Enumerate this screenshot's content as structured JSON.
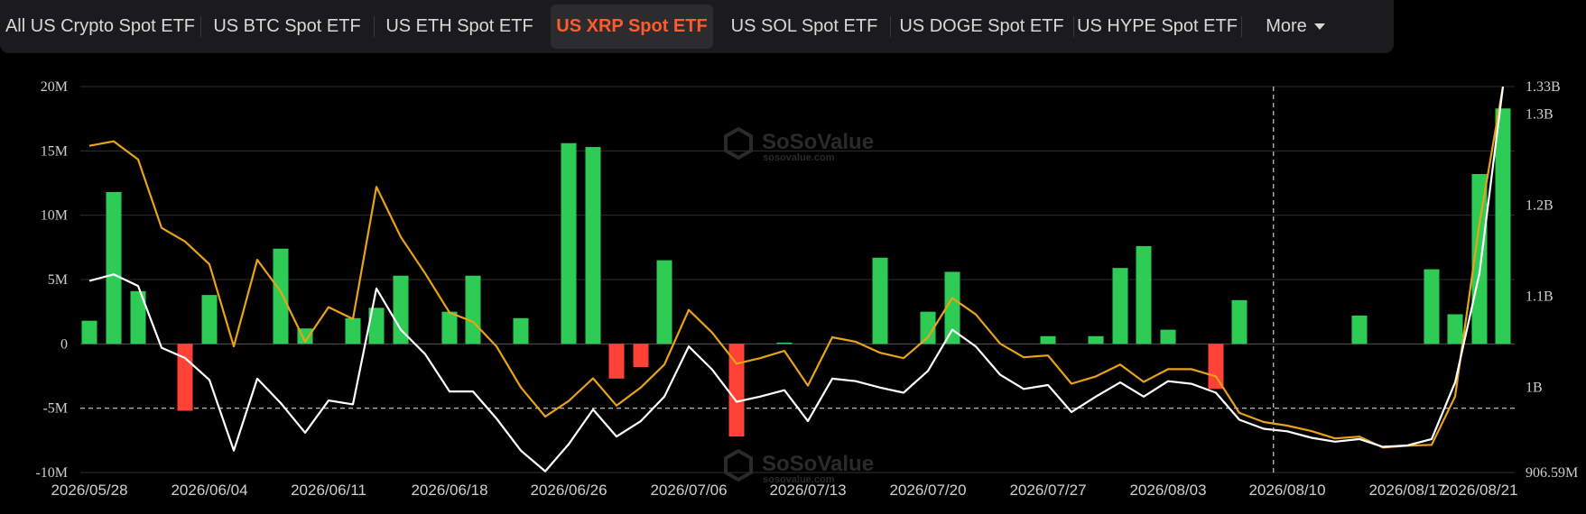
{
  "tabs": [
    {
      "label": "All US Crypto Spot ETF",
      "active": false
    },
    {
      "label": "US BTC Spot ETF",
      "active": false
    },
    {
      "label": "US ETH Spot ETF",
      "active": false
    },
    {
      "label": "US XRP Spot ETF",
      "active": true
    },
    {
      "label": "US SOL Spot ETF",
      "active": false
    },
    {
      "label": "US DOGE Spot ETF",
      "active": false
    },
    {
      "label": "US HYPE Spot ETF",
      "active": false
    }
  ],
  "more_label": "More",
  "watermark": {
    "brand": "SoSoValue",
    "domain": "sosovalue.com"
  },
  "colors": {
    "inflow": "#2ecc55",
    "outflow": "#ff4136",
    "line_white": "#ffffff",
    "line_orange": "#e8a318",
    "active_tab": "#ff5b2e"
  },
  "chart_data": {
    "type": "bar",
    "title": "",
    "xlabel": "",
    "ylabel": "",
    "left_ticks": [
      "20M",
      "15M",
      "10M",
      "5M",
      "0",
      "-5M",
      "-10M"
    ],
    "right_ticks": [
      "1.33B",
      "1.3B",
      "1.2B",
      "1.1B",
      "1B",
      "906.59M"
    ],
    "x_tick_labels": [
      "2026/05/28",
      "2026/06/04",
      "2026/06/11",
      "2026/06/18",
      "2026/06/26",
      "2026/07/06",
      "2026/07/13",
      "2026/07/20",
      "2026/07/27",
      "2026/08/03",
      "2026/08/10",
      "2026/08/17",
      "2026/08/21"
    ],
    "x_tick_index": [
      0,
      5,
      10,
      15,
      20,
      25,
      30,
      35,
      40,
      45,
      50,
      55,
      59
    ],
    "ylim_left": [
      -10000000,
      20000000
    ],
    "ylim_right": [
      906590000,
      1330000000
    ],
    "grid": true,
    "reference_lines": [
      {
        "axis": "left",
        "value": -5000000,
        "style": "dashed"
      }
    ],
    "marker_index": 49.5,
    "series": [
      {
        "kind": "bar",
        "axis": "left",
        "values": [
          1800000.0,
          11800000.0,
          4100000.0,
          0,
          -5200000.0,
          0,
          3800000.0,
          0,
          0,
          7400000.0,
          1200000.0,
          0,
          0,
          2000000.0,
          2800000.0,
          5300000.0,
          0,
          0,
          2500000.0,
          5300000.0,
          0,
          0,
          2000000.0,
          0,
          15600000.0,
          15300000.0,
          -2700000.0,
          -1800000.0,
          0,
          6500000.0,
          0,
          0,
          -7200000.0,
          0,
          100000.0,
          0,
          0,
          0,
          0,
          0,
          0,
          0,
          0,
          0,
          0,
          0,
          6700000.0,
          0,
          0,
          0,
          0,
          0,
          0,
          0,
          0,
          0,
          0,
          0,
          0,
          0
        ]
      },
      {
        "kind": "line",
        "axis": "left",
        "color": "white",
        "values": [
          4900000.0,
          5400000.0,
          4500000.0,
          -300000.0,
          -1100000.0,
          -2800000.0,
          -8300000.0,
          -2700000.0,
          -4600000.0,
          -6900000.0,
          -4400000.0,
          -4700000.0,
          4300000.0,
          1100000.0,
          -800000.0,
          -3700000.0,
          -3700000.0,
          -5800000.0,
          -8300000.0,
          -9900000.0,
          -7800000.0,
          -5100000.0,
          -7200000.0,
          -6000000.0,
          -4100000.0,
          -200000.0,
          -2000000.0,
          -4500000.0,
          -4100000.0,
          -3600000.0,
          -6000000.0,
          -2700000.0,
          -2900000.0
        ]
      }
    ]
  },
  "chart_series_extra": {
    "bar_values_tail": [
      0,
      0,
      0,
      0,
      0,
      0
    ],
    "notes_hidden": true
  }
}
